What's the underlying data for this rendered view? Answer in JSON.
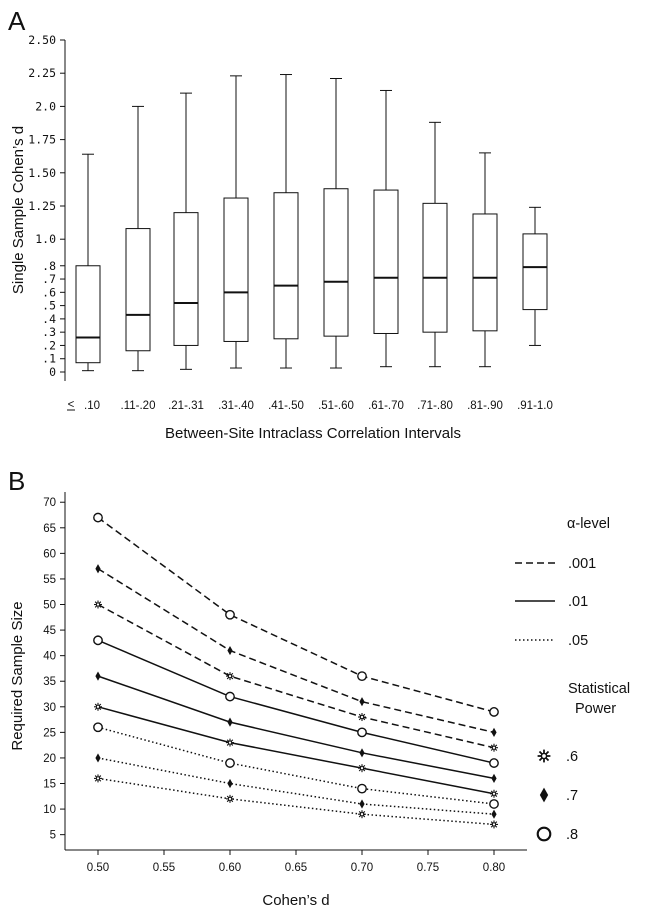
{
  "panels": [
    {
      "letter": "A"
    },
    {
      "letter": "B"
    }
  ],
  "chart_data": [
    {
      "type": "box",
      "panel": "A",
      "xlabel": "Between-Site Intraclass Correlation Intervals",
      "ylabel": "Single Sample Cohen’s d",
      "categories": [
        ".11-.20",
        ".21-.31",
        ".31-.40",
        ".41-.50",
        ".51-.60",
        ".61-.70",
        ".71-.80",
        ".81-.90",
        ".91-1.0"
      ],
      "first_category": {
        "prefix": "<",
        "label": ".10"
      },
      "ylim": [
        0,
        2.5
      ],
      "yticks": [
        {
          "value": 0,
          "label": "0"
        },
        {
          "value": 0.1,
          "label": ".1"
        },
        {
          "value": 0.2,
          "label": ".2"
        },
        {
          "value": 0.3,
          "label": ".3"
        },
        {
          "value": 0.4,
          "label": ".4"
        },
        {
          "value": 0.5,
          "label": ".5"
        },
        {
          "value": 0.6,
          "label": ".6"
        },
        {
          "value": 0.7,
          "label": ".7"
        },
        {
          "value": 0.8,
          "label": ".8"
        },
        {
          "value": 1.0,
          "label": "1.0"
        },
        {
          "value": 1.25,
          "label": "1.25"
        },
        {
          "value": 1.5,
          "label": "1.50"
        },
        {
          "value": 1.75,
          "label": "1.75"
        },
        {
          "value": 2.0,
          "label": "2.0"
        },
        {
          "value": 2.25,
          "label": "2.25"
        },
        {
          "value": 2.5,
          "label": "2.50"
        }
      ],
      "boxes": [
        {
          "min": 0.01,
          "q1": 0.07,
          "median": 0.26,
          "q3": 0.8,
          "max": 1.64
        },
        {
          "min": 0.01,
          "q1": 0.16,
          "median": 0.43,
          "q3": 1.08,
          "max": 2.0
        },
        {
          "min": 0.02,
          "q1": 0.2,
          "median": 0.52,
          "q3": 1.2,
          "max": 2.1
        },
        {
          "min": 0.03,
          "q1": 0.23,
          "median": 0.6,
          "q3": 1.31,
          "max": 2.23
        },
        {
          "min": 0.03,
          "q1": 0.25,
          "median": 0.65,
          "q3": 1.35,
          "max": 2.24
        },
        {
          "min": 0.03,
          "q1": 0.27,
          "median": 0.68,
          "q3": 1.38,
          "max": 2.21
        },
        {
          "min": 0.04,
          "q1": 0.29,
          "median": 0.71,
          "q3": 1.37,
          "max": 2.12
        },
        {
          "min": 0.04,
          "q1": 0.3,
          "median": 0.71,
          "q3": 1.27,
          "max": 1.88
        },
        {
          "min": 0.04,
          "q1": 0.31,
          "median": 0.71,
          "q3": 1.19,
          "max": 1.65
        },
        {
          "min": 0.2,
          "q1": 0.47,
          "median": 0.79,
          "q3": 1.04,
          "max": 1.24
        }
      ],
      "grid": false
    },
    {
      "type": "line",
      "panel": "B",
      "xlabel": "Cohen’s d",
      "ylabel": "Required Sample Size",
      "x": [
        0.5,
        0.6,
        0.7,
        0.8
      ],
      "xlim": [
        0.475,
        0.825
      ],
      "xticks": [
        {
          "value": 0.5,
          "label": "0.50"
        },
        {
          "value": 0.55,
          "label": "0.55"
        },
        {
          "value": 0.6,
          "label": "0.60"
        },
        {
          "value": 0.65,
          "label": "0.65"
        },
        {
          "value": 0.7,
          "label": "0.70"
        },
        {
          "value": 0.75,
          "label": "0.75"
        },
        {
          "value": 0.8,
          "label": "0.80"
        }
      ],
      "ylim": [
        2,
        72
      ],
      "yticks": [
        5,
        10,
        15,
        20,
        25,
        30,
        35,
        40,
        45,
        50,
        55,
        60,
        65,
        70
      ],
      "series": [
        {
          "alpha": ".001",
          "power": ".8",
          "values": [
            67,
            48,
            36,
            29
          ]
        },
        {
          "alpha": ".001",
          "power": ".7",
          "values": [
            57,
            41,
            31,
            25
          ]
        },
        {
          "alpha": ".001",
          "power": ".6",
          "values": [
            50,
            36,
            28,
            22
          ]
        },
        {
          "alpha": ".01",
          "power": ".8",
          "values": [
            43,
            32,
            25,
            19
          ]
        },
        {
          "alpha": ".01",
          "power": ".7",
          "values": [
            36,
            27,
            21,
            16
          ]
        },
        {
          "alpha": ".01",
          "power": ".6",
          "values": [
            30,
            23,
            18,
            13
          ]
        },
        {
          "alpha": ".05",
          "power": ".8",
          "values": [
            26,
            19,
            14,
            11
          ]
        },
        {
          "alpha": ".05",
          "power": ".7",
          "values": [
            20,
            15,
            11,
            9
          ]
        },
        {
          "alpha": ".05",
          "power": ".6",
          "values": [
            16,
            12,
            9,
            7
          ]
        }
      ],
      "legend": {
        "placement": "right",
        "alpha_title": "α-level",
        "alpha_levels": [
          {
            "label": ".001",
            "line_style": "dashed"
          },
          {
            "label": ".01",
            "line_style": "solid"
          },
          {
            "label": ".05",
            "line_style": "dotted"
          }
        ],
        "power_title_line1": "Statistical",
        "power_title_line2": "Power",
        "power_levels": [
          {
            "label": ".6",
            "marker": "star-icon"
          },
          {
            "label": ".7",
            "marker": "diamond-icon"
          },
          {
            "label": ".8",
            "marker": "circle-icon"
          }
        ]
      },
      "grid": false
    }
  ]
}
